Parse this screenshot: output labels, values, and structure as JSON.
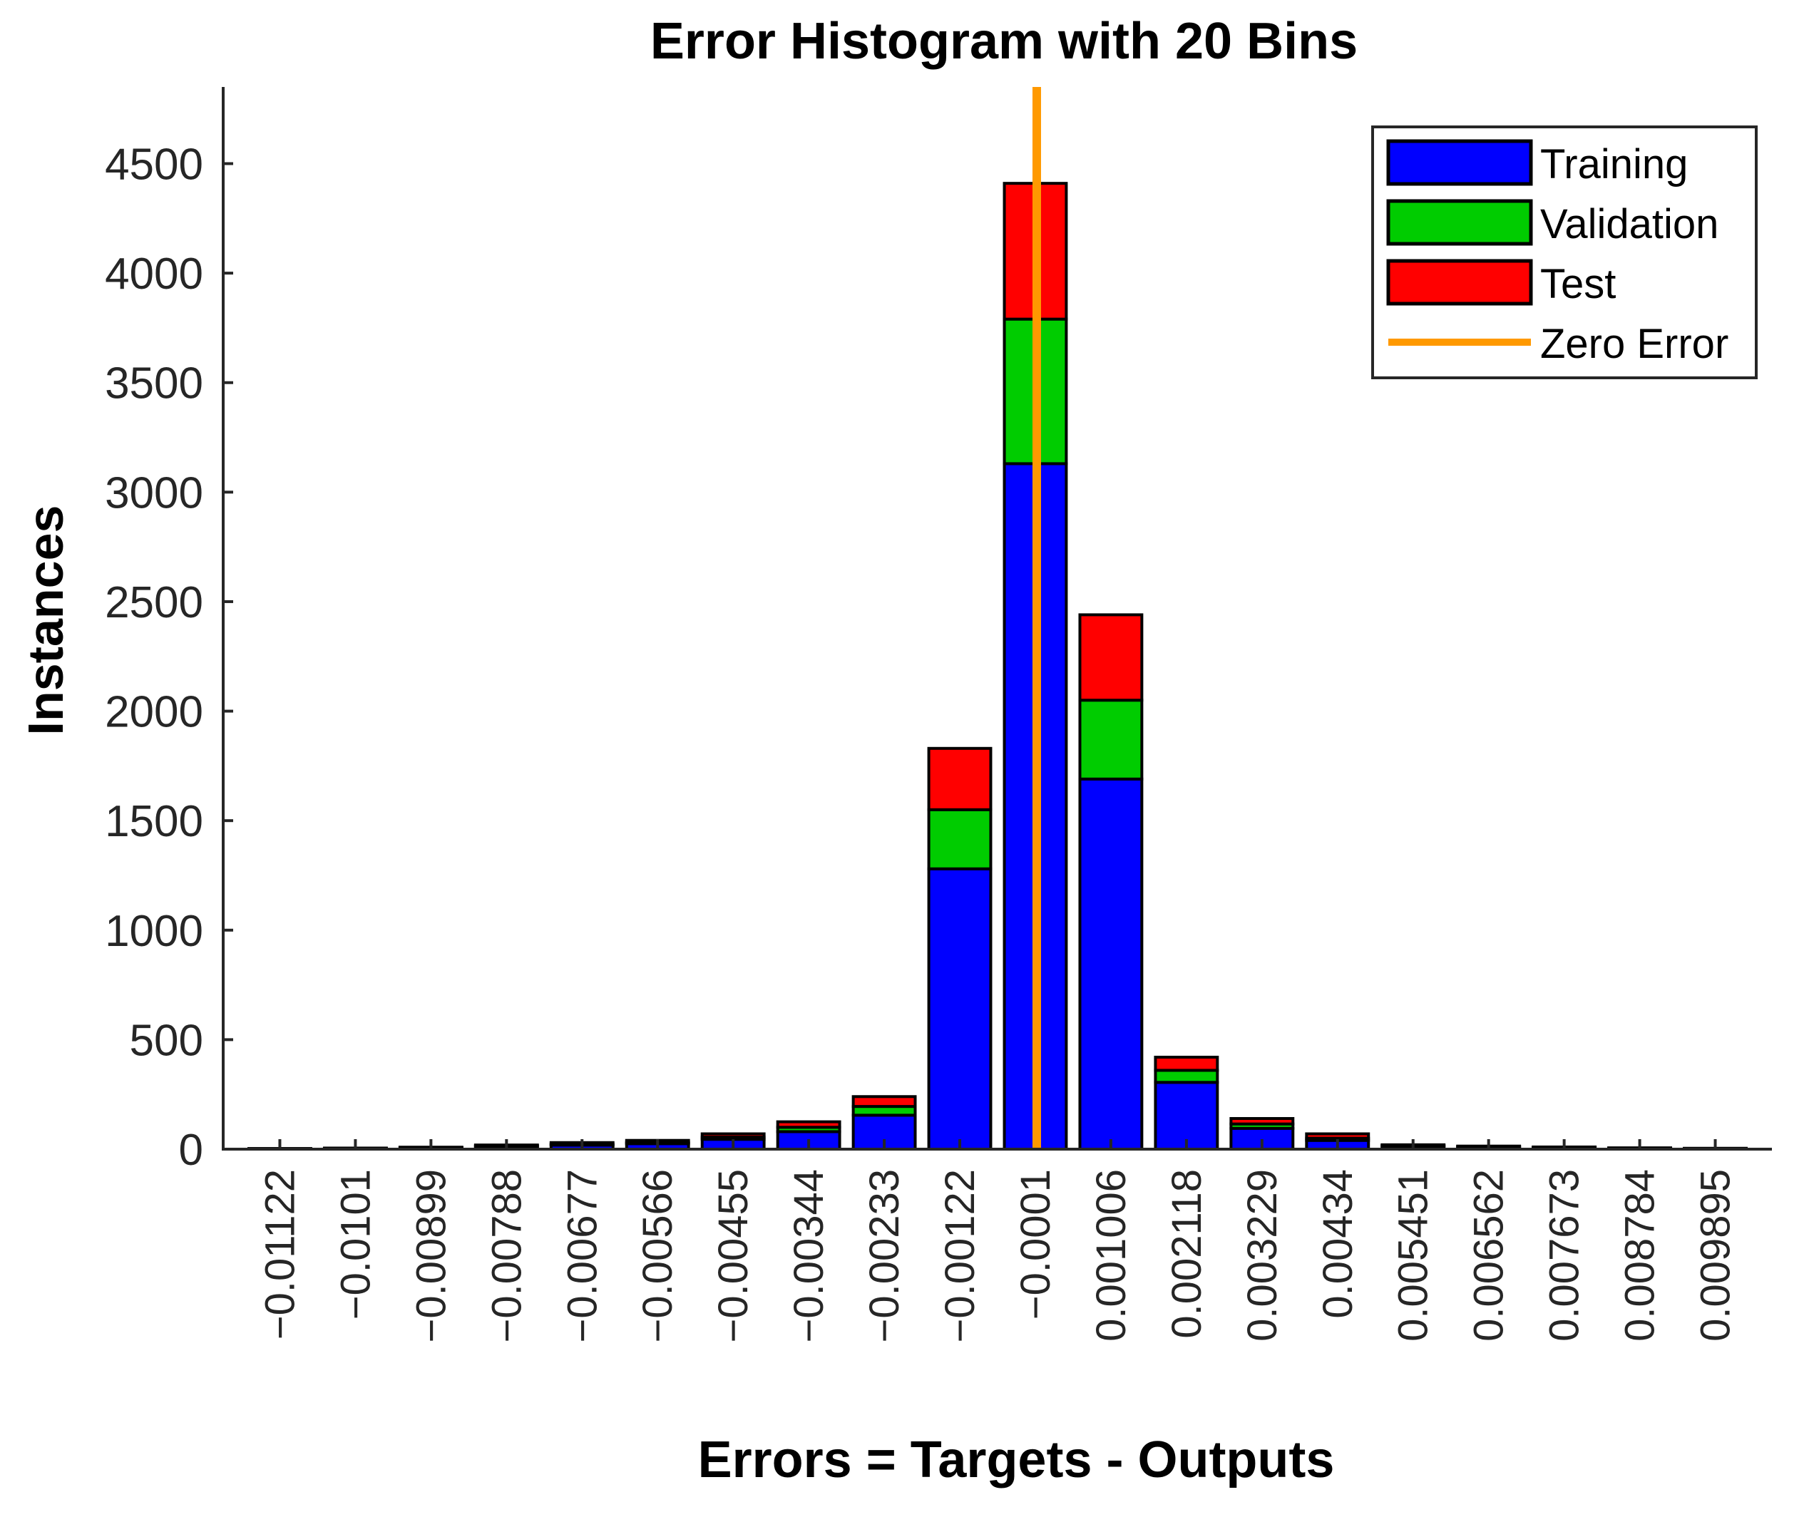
{
  "chart_data": {
    "type": "bar",
    "stacked": true,
    "title": "Error Histogram with 20 Bins",
    "xlabel": "Errors = Targets - Outputs",
    "ylabel": "Instances",
    "ylim": [
      0,
      4850
    ],
    "yticks": [
      0,
      500,
      1000,
      1500,
      2000,
      2500,
      3000,
      3500,
      4000,
      4500
    ],
    "categories": [
      "−0.01122",
      "−0.0101",
      "−0.00899",
      "−0.00788",
      "−0.00677",
      "−0.00566",
      "−0.00455",
      "−0.00344",
      "−0.00233",
      "−0.00122",
      "−0.0001",
      "0.001006",
      "0.002118",
      "0.003229",
      "0.00434",
      "0.005451",
      "0.006562",
      "0.007673",
      "0.008784",
      "0.009895"
    ],
    "series": [
      {
        "name": "Training",
        "color": "#0000ff",
        "values": [
          2,
          3,
          5,
          12,
          18,
          25,
          45,
          80,
          155,
          1280,
          3130,
          1690,
          305,
          95,
          40,
          12,
          8,
          6,
          4,
          2
        ]
      },
      {
        "name": "Validation",
        "color": "#00cc00",
        "values": [
          0,
          1,
          2,
          3,
          5,
          6,
          10,
          20,
          40,
          270,
          660,
          360,
          55,
          20,
          10,
          4,
          3,
          2,
          1,
          1
        ]
      },
      {
        "name": "Test",
        "color": "#ff0000",
        "values": [
          1,
          1,
          2,
          4,
          7,
          9,
          15,
          25,
          45,
          280,
          620,
          390,
          60,
          25,
          20,
          4,
          3,
          2,
          1,
          1
        ]
      }
    ],
    "reference_line": {
      "name": "Zero Error",
      "color": "#ff9900",
      "x_category": "−0.0001"
    },
    "legend": {
      "position": "top-right",
      "entries": [
        "Training",
        "Validation",
        "Test",
        "Zero Error"
      ]
    },
    "grid": false
  }
}
